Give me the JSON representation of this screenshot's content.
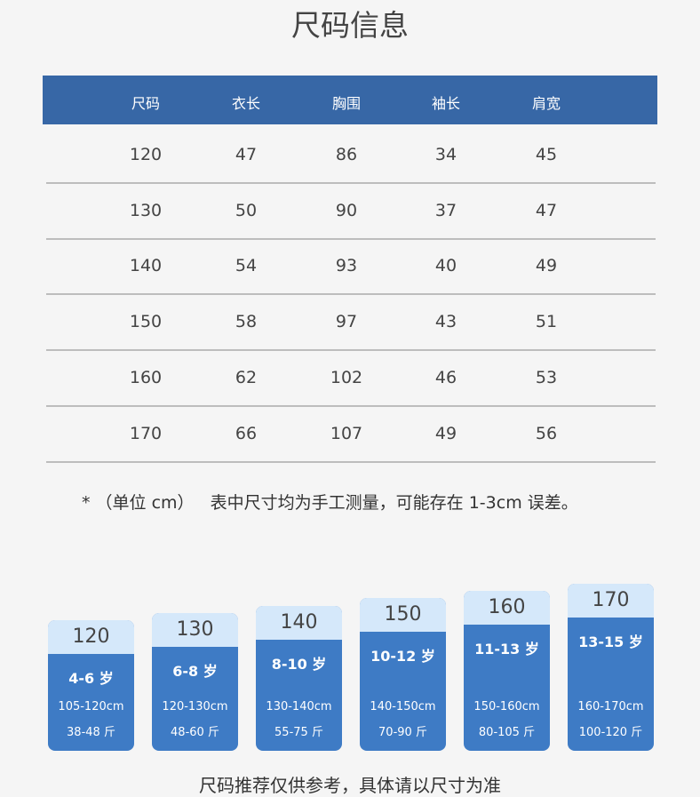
{
  "title": "尺码信息",
  "table": {
    "header": [
      "尺码",
      "衣长",
      "胸围",
      "袖长",
      "肩宽"
    ],
    "rows": [
      [
        "120",
        "47",
        "86",
        "34",
        "45"
      ],
      [
        "130",
        "50",
        "90",
        "37",
        "47"
      ],
      [
        "140",
        "54",
        "93",
        "40",
        "49"
      ],
      [
        "150",
        "58",
        "97",
        "43",
        "51"
      ],
      [
        "160",
        "62",
        "102",
        "46",
        "53"
      ],
      [
        "170",
        "66",
        "107",
        "49",
        "56"
      ]
    ]
  },
  "note": {
    "mark": "*",
    "unit": "（单位 cm）",
    "text": "表中尺寸均为手工测量，可能存在 1-3cm 误差。"
  },
  "cards": [
    {
      "size": "120",
      "age": "4-6 岁",
      "height": "105-120cm",
      "weight": "38-48 斤"
    },
    {
      "size": "130",
      "age": "6-8 岁",
      "height": "120-130cm",
      "weight": "48-60 斤"
    },
    {
      "size": "140",
      "age": "8-10 岁",
      "height": "130-140cm",
      "weight": "55-75 斤"
    },
    {
      "size": "150",
      "age": "10-12 岁",
      "height": "140-150cm",
      "weight": "70-90 斤"
    },
    {
      "size": "160",
      "age": "11-13 岁",
      "height": "150-160cm",
      "weight": "80-105 斤"
    },
    {
      "size": "170",
      "age": "13-15 岁",
      "height": "160-170cm",
      "weight": "100-120 斤"
    }
  ],
  "footer": "尺码推荐仅供参考，具体请以尺寸为准"
}
